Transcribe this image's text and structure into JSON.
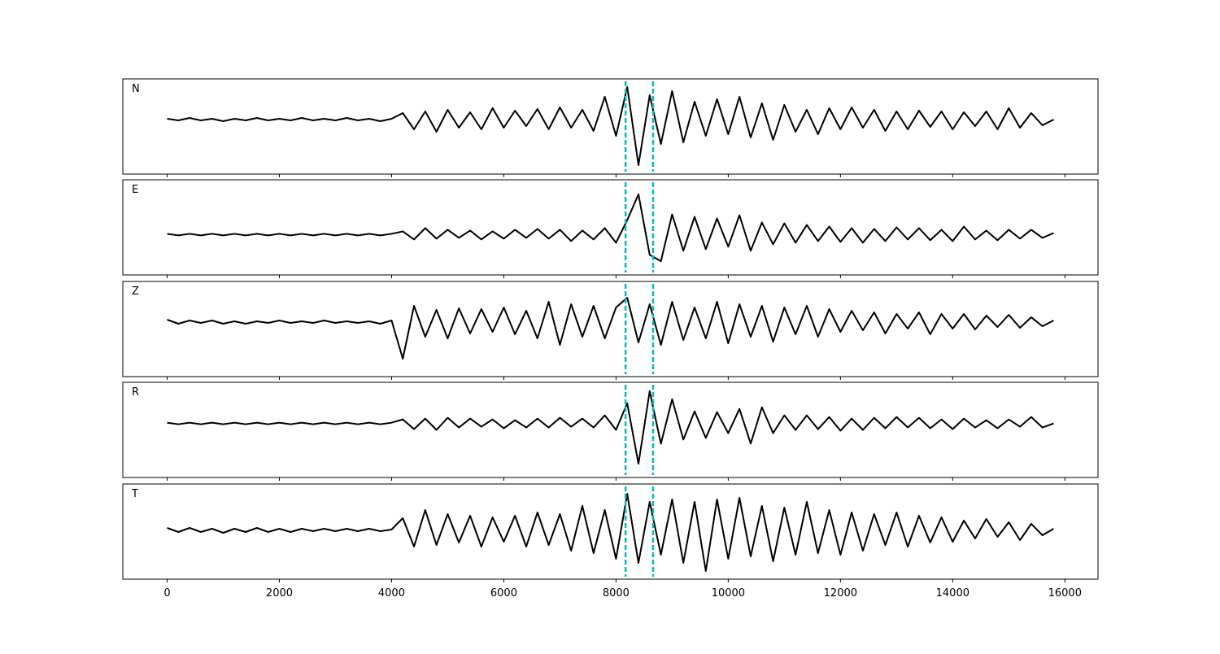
{
  "chart_data": {
    "type": "line",
    "x": [
      0,
      200,
      400,
      600,
      800,
      1000,
      1200,
      1400,
      1600,
      1800,
      2000,
      2200,
      2400,
      2600,
      2800,
      3000,
      3200,
      3400,
      3600,
      3800,
      4000,
      4200,
      4400,
      4600,
      4800,
      5000,
      5200,
      5400,
      5600,
      5800,
      6000,
      6200,
      6400,
      6600,
      6800,
      7000,
      7200,
      7400,
      7600,
      7800,
      8000,
      8200,
      8400,
      8600,
      8800,
      9000,
      9200,
      9400,
      9600,
      9800,
      10000,
      10200,
      10400,
      10600,
      10800,
      11000,
      11200,
      11400,
      11600,
      11800,
      12000,
      12200,
      12400,
      12600,
      12800,
      13000,
      13200,
      13400,
      13600,
      13800,
      14000,
      14200,
      14400,
      14600,
      14800,
      15000,
      15200,
      15400,
      15600,
      15800
    ],
    "xlim": [
      -790,
      16590
    ],
    "xticks": [
      0,
      2000,
      4000,
      6000,
      8000,
      10000,
      12000,
      14000,
      16000
    ],
    "vlines": [
      8170,
      8660
    ],
    "vline_color": "#00bfbf",
    "series": [
      {
        "name": "N",
        "color": "#000000",
        "ylim": [
          -67,
          50
        ],
        "values": [
          1,
          -1,
          2,
          -1,
          1,
          -2,
          1,
          -1,
          2,
          -1,
          1,
          -1,
          2,
          -1,
          1,
          -1,
          2,
          -1,
          1,
          -2,
          1,
          8,
          -12,
          10,
          -15,
          12,
          -10,
          9,
          -12,
          14,
          -10,
          11,
          -8,
          13,
          -12,
          15,
          -10,
          12,
          -14,
          28,
          -20,
          40,
          -56,
          30,
          -30,
          35,
          -28,
          22,
          -20,
          25,
          -18,
          28,
          -22,
          20,
          -25,
          18,
          -15,
          12,
          -18,
          14,
          -12,
          15,
          -10,
          12,
          -14,
          10,
          -12,
          11,
          -9,
          10,
          -12,
          9,
          -8,
          10,
          -12,
          14,
          -10,
          8,
          -7,
          0
        ]
      },
      {
        "name": "E",
        "color": "#000000",
        "ylim": [
          -50,
          68
        ],
        "values": [
          1,
          -1,
          1,
          -1,
          1,
          -1,
          1,
          -1,
          1,
          -1,
          1,
          -1,
          1,
          -1,
          1,
          -1,
          1,
          -1,
          1,
          -1,
          1,
          4,
          -6,
          8,
          -5,
          6,
          -4,
          5,
          -6,
          4,
          -5,
          6,
          -4,
          7,
          -5,
          6,
          -8,
          5,
          -6,
          8,
          -10,
          18,
          50,
          -25,
          -33,
          25,
          -20,
          22,
          -18,
          20,
          -15,
          24,
          -20,
          15,
          -12,
          14,
          -10,
          12,
          -8,
          10,
          -9,
          8,
          -10,
          7,
          -8,
          9,
          -6,
          8,
          -7,
          6,
          -8,
          10,
          -6,
          5,
          -7,
          6,
          -5,
          6,
          -4,
          2
        ]
      },
      {
        "name": "Z",
        "color": "#000000",
        "ylim": [
          -67,
          50
        ],
        "values": [
          3,
          -2,
          2,
          -1,
          2,
          -2,
          1,
          -2,
          1,
          -1,
          2,
          -1,
          1,
          -1,
          2,
          -1,
          1,
          -1,
          1,
          -2,
          2,
          -45,
          20,
          -18,
          15,
          -20,
          17,
          -14,
          16,
          -12,
          18,
          -15,
          14,
          -20,
          25,
          -28,
          22,
          -18,
          20,
          -20,
          18,
          30,
          -25,
          22,
          -28,
          25,
          -22,
          18,
          -20,
          25,
          -26,
          22,
          -18,
          20,
          -24,
          18,
          -15,
          20,
          -18,
          16,
          -12,
          14,
          -10,
          12,
          -14,
          10,
          -8,
          12,
          -15,
          10,
          -8,
          10,
          -9,
          8,
          -6,
          9,
          -7,
          6,
          -5,
          2
        ]
      },
      {
        "name": "R",
        "color": "#000000",
        "ylim": [
          -67,
          51
        ],
        "values": [
          1,
          -1,
          1,
          -1,
          1,
          -1,
          1,
          -1,
          1,
          -1,
          1,
          -1,
          1,
          -1,
          1,
          -1,
          1,
          -1,
          1,
          -1,
          1,
          5,
          -7,
          6,
          -8,
          7,
          -5,
          6,
          -4,
          5,
          -6,
          4,
          -5,
          6,
          -5,
          7,
          -4,
          6,
          -5,
          10,
          -8,
          25,
          -50,
          40,
          -25,
          30,
          -20,
          15,
          -18,
          14,
          -12,
          18,
          -25,
          20,
          -12,
          10,
          -8,
          10,
          -7,
          8,
          -9,
          6,
          -8,
          7,
          -6,
          8,
          -5,
          7,
          -6,
          5,
          -7,
          6,
          -5,
          4,
          -6,
          5,
          -4,
          8,
          -5,
          0
        ]
      },
      {
        "name": "T",
        "color": "#000000",
        "ylim": [
          -60,
          57
        ],
        "values": [
          3,
          -2,
          3,
          -2,
          2,
          -3,
          2,
          -2,
          3,
          -2,
          2,
          -2,
          2,
          -1,
          2,
          -1,
          2,
          -1,
          2,
          -1,
          1,
          15,
          -20,
          25,
          -18,
          20,
          -15,
          18,
          -20,
          16,
          -14,
          18,
          -20,
          22,
          -18,
          20,
          -25,
          30,
          -28,
          25,
          -35,
          45,
          -40,
          35,
          -30,
          38,
          -40,
          35,
          -50,
          38,
          -35,
          40,
          -32,
          30,
          -38,
          28,
          -30,
          35,
          -28,
          25,
          -30,
          22,
          -25,
          20,
          -18,
          22,
          -20,
          18,
          -15,
          16,
          -14,
          12,
          -10,
          14,
          -8,
          10,
          -12,
          8,
          -6,
          2
        ]
      }
    ]
  }
}
